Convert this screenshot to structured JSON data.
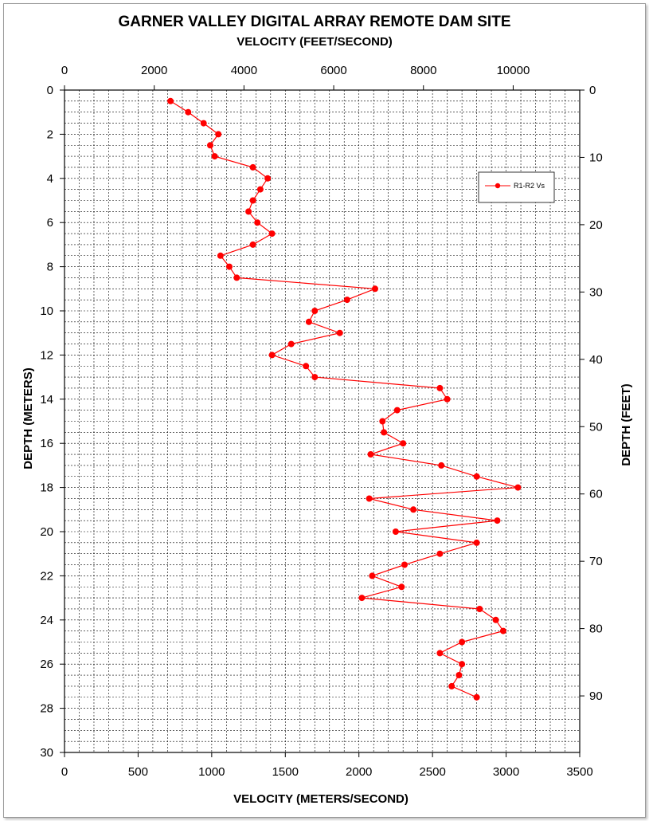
{
  "chart_data": {
    "type": "line",
    "title": "GARNER VALLEY DIGITAL ARRAY REMOTE DAM SITE",
    "x2label": "VELOCITY (FEET/SECOND)",
    "xlabel": "VELOCITY (METERS/SECOND)",
    "ylabel": "DEPTH (METERS)",
    "y2label": "DEPTH (FEET)",
    "xlim": [
      0,
      3500
    ],
    "ylim": [
      0,
      30
    ],
    "y_inverted": true,
    "x2lim_feet_per_second": [
      0,
      11483
    ],
    "y2lim_feet": [
      0,
      98.4
    ],
    "x_ticks": [
      "0",
      "500",
      "1000",
      "1500",
      "2000",
      "2500",
      "3000",
      "3500"
    ],
    "x2_ticks": [
      "0",
      "2000",
      "4000",
      "6000",
      "8000",
      "10000"
    ],
    "y_ticks": [
      "0",
      "2",
      "4",
      "6",
      "8",
      "10",
      "12",
      "14",
      "16",
      "18",
      "20",
      "22",
      "24",
      "26",
      "28",
      "30"
    ],
    "y2_ticks": [
      "0",
      "10",
      "20",
      "30",
      "40",
      "50",
      "60",
      "70",
      "80",
      "90"
    ],
    "grid": true,
    "legend_position": "top-right",
    "series": [
      {
        "name": "R1-R2 Vs",
        "color": "#ff0000",
        "x": [
          720,
          840,
          945,
          1045,
          990,
          1020,
          1280,
          1380,
          1330,
          1280,
          1250,
          1310,
          1410,
          1280,
          1060,
          1120,
          1170,
          2110,
          1920,
          1700,
          1660,
          1870,
          1540,
          1410,
          1640,
          1700,
          2550,
          2600,
          2260,
          2160,
          2170,
          2300,
          2080,
          2560,
          2800,
          3080,
          2070,
          2370,
          2940,
          2250,
          2800,
          2550,
          2310,
          2090,
          2290,
          2020,
          2820,
          2930,
          2980,
          2700,
          2550,
          2700,
          2680,
          2630,
          2800
        ],
        "y": [
          0.5,
          1.0,
          1.5,
          2.0,
          2.5,
          3.0,
          3.5,
          4.0,
          4.5,
          5.0,
          5.5,
          6.0,
          6.5,
          7.0,
          7.5,
          8.0,
          8.5,
          9.0,
          9.5,
          10.0,
          10.5,
          11.0,
          11.5,
          12.0,
          12.5,
          13.0,
          13.5,
          14.0,
          14.5,
          15.0,
          15.5,
          16.0,
          16.5,
          17.0,
          17.5,
          18.0,
          18.5,
          19.0,
          19.5,
          20.0,
          20.5,
          21.0,
          21.5,
          22.0,
          22.5,
          23.0,
          23.5,
          24.0,
          24.5,
          25.0,
          25.5,
          26.0,
          26.5,
          27.0,
          27.5
        ]
      }
    ]
  }
}
